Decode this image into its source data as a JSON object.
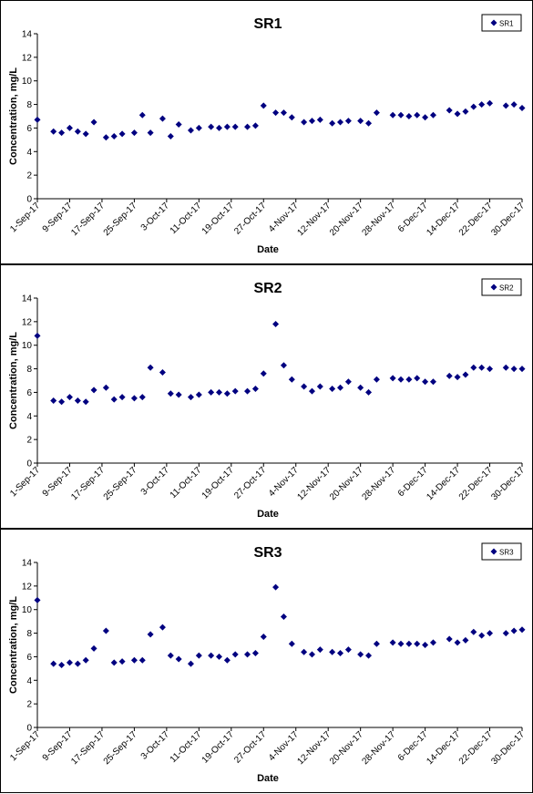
{
  "chart_data": [
    {
      "type": "scatter",
      "title": "SR1",
      "xlabel": "Date",
      "ylabel": "Concentration, mg/L",
      "ylim": [
        0,
        14
      ],
      "yticks": [
        "0",
        "2",
        "4",
        "6",
        "8",
        "10",
        "12",
        "14"
      ],
      "xlim": [
        "2017-09-01",
        "2017-12-30"
      ],
      "xticks": [
        "1-Sep-17",
        "9-Sep-17",
        "17-Sep-17",
        "25-Sep-17",
        "3-Oct-17",
        "11-Oct-17",
        "19-Oct-17",
        "27-Oct-17",
        "4-Nov-17",
        "12-Nov-17",
        "20-Nov-17",
        "28-Nov-17",
        "6-Dec-17",
        "14-Dec-17",
        "22-Dec-17",
        "30-Dec-17"
      ],
      "legend": "top-right",
      "marker_color": "#000080",
      "series": [
        {
          "name": "SR1",
          "x": [
            "2017-09-01",
            "2017-09-05",
            "2017-09-07",
            "2017-09-09",
            "2017-09-11",
            "2017-09-13",
            "2017-09-15",
            "2017-09-18",
            "2017-09-20",
            "2017-09-22",
            "2017-09-25",
            "2017-09-27",
            "2017-09-29",
            "2017-10-02",
            "2017-10-04",
            "2017-10-06",
            "2017-10-09",
            "2017-10-11",
            "2017-10-14",
            "2017-10-16",
            "2017-10-18",
            "2017-10-20",
            "2017-10-23",
            "2017-10-25",
            "2017-10-27",
            "2017-10-30",
            "2017-11-01",
            "2017-11-03",
            "2017-11-06",
            "2017-11-08",
            "2017-11-10",
            "2017-11-13",
            "2017-11-15",
            "2017-11-17",
            "2017-11-20",
            "2017-11-22",
            "2017-11-24",
            "2017-11-28",
            "2017-11-30",
            "2017-12-02",
            "2017-12-04",
            "2017-12-06",
            "2017-12-08",
            "2017-12-12",
            "2017-12-14",
            "2017-12-16",
            "2017-12-18",
            "2017-12-20",
            "2017-12-22",
            "2017-12-26",
            "2017-12-28",
            "2017-12-30"
          ],
          "y": [
            6.7,
            5.7,
            5.6,
            6.0,
            5.7,
            5.5,
            6.5,
            5.2,
            5.3,
            5.5,
            5.6,
            7.1,
            5.6,
            6.8,
            5.3,
            6.3,
            5.8,
            6.0,
            6.1,
            6.0,
            6.1,
            6.1,
            6.1,
            6.2,
            7.9,
            7.3,
            7.3,
            6.9,
            6.5,
            6.6,
            6.7,
            6.4,
            6.5,
            6.6,
            6.6,
            6.4,
            7.3,
            7.1,
            7.1,
            7.0,
            7.1,
            6.9,
            7.1,
            7.5,
            7.2,
            7.4,
            7.8,
            8.0,
            8.1,
            7.9,
            8.0,
            7.7
          ]
        }
      ]
    },
    {
      "type": "scatter",
      "title": "SR2",
      "xlabel": "Date",
      "ylabel": "Concentration, mg/L",
      "ylim": [
        0,
        14
      ],
      "yticks": [
        "0",
        "2",
        "4",
        "6",
        "8",
        "10",
        "12",
        "14"
      ],
      "xlim": [
        "2017-09-01",
        "2017-12-30"
      ],
      "xticks": [
        "1-Sep-17",
        "9-Sep-17",
        "17-Sep-17",
        "25-Sep-17",
        "3-Oct-17",
        "11-Oct-17",
        "19-Oct-17",
        "27-Oct-17",
        "4-Nov-17",
        "12-Nov-17",
        "20-Nov-17",
        "28-Nov-17",
        "6-Dec-17",
        "14-Dec-17",
        "22-Dec-17",
        "30-Dec-17"
      ],
      "legend": "top-right",
      "marker_color": "#000080",
      "series": [
        {
          "name": "SR2",
          "x": [
            "2017-09-01",
            "2017-09-05",
            "2017-09-07",
            "2017-09-09",
            "2017-09-11",
            "2017-09-13",
            "2017-09-15",
            "2017-09-18",
            "2017-09-20",
            "2017-09-22",
            "2017-09-25",
            "2017-09-27",
            "2017-09-29",
            "2017-10-02",
            "2017-10-04",
            "2017-10-06",
            "2017-10-09",
            "2017-10-11",
            "2017-10-14",
            "2017-10-16",
            "2017-10-18",
            "2017-10-20",
            "2017-10-23",
            "2017-10-25",
            "2017-10-27",
            "2017-10-30",
            "2017-11-01",
            "2017-11-03",
            "2017-11-06",
            "2017-11-08",
            "2017-11-10",
            "2017-11-13",
            "2017-11-15",
            "2017-11-17",
            "2017-11-20",
            "2017-11-22",
            "2017-11-24",
            "2017-11-28",
            "2017-11-30",
            "2017-12-02",
            "2017-12-04",
            "2017-12-06",
            "2017-12-08",
            "2017-12-12",
            "2017-12-14",
            "2017-12-16",
            "2017-12-18",
            "2017-12-20",
            "2017-12-22",
            "2017-12-26",
            "2017-12-28",
            "2017-12-30"
          ],
          "y": [
            10.8,
            5.3,
            5.2,
            5.6,
            5.3,
            5.2,
            6.2,
            6.4,
            5.4,
            5.6,
            5.5,
            5.6,
            8.1,
            7.7,
            5.9,
            5.8,
            5.6,
            5.8,
            6.0,
            6.0,
            5.9,
            6.1,
            6.1,
            6.3,
            7.6,
            11.8,
            8.3,
            7.1,
            6.5,
            6.1,
            6.5,
            6.3,
            6.4,
            6.9,
            6.4,
            6.0,
            7.1,
            7.2,
            7.1,
            7.1,
            7.2,
            6.9,
            6.9,
            7.4,
            7.3,
            7.5,
            8.1,
            8.1,
            8.0,
            8.1,
            8.0,
            8.0
          ]
        }
      ]
    },
    {
      "type": "scatter",
      "title": "SR3",
      "xlabel": "Date",
      "ylabel": "Concentration, mg/L",
      "ylim": [
        0,
        14
      ],
      "yticks": [
        "0",
        "2",
        "4",
        "6",
        "8",
        "10",
        "12",
        "14"
      ],
      "xlim": [
        "2017-09-01",
        "2017-12-30"
      ],
      "xticks": [
        "1-Sep-17",
        "9-Sep-17",
        "17-Sep-17",
        "25-Sep-17",
        "3-Oct-17",
        "11-Oct-17",
        "19-Oct-17",
        "27-Oct-17",
        "4-Nov-17",
        "12-Nov-17",
        "20-Nov-17",
        "28-Nov-17",
        "6-Dec-17",
        "14-Dec-17",
        "22-Dec-17",
        "30-Dec-17"
      ],
      "legend": "top-right",
      "marker_color": "#000080",
      "series": [
        {
          "name": "SR3",
          "x": [
            "2017-09-01",
            "2017-09-05",
            "2017-09-07",
            "2017-09-09",
            "2017-09-11",
            "2017-09-13",
            "2017-09-15",
            "2017-09-18",
            "2017-09-20",
            "2017-09-22",
            "2017-09-25",
            "2017-09-27",
            "2017-09-29",
            "2017-10-02",
            "2017-10-04",
            "2017-10-06",
            "2017-10-09",
            "2017-10-11",
            "2017-10-14",
            "2017-10-16",
            "2017-10-18",
            "2017-10-20",
            "2017-10-23",
            "2017-10-25",
            "2017-10-27",
            "2017-10-30",
            "2017-11-01",
            "2017-11-03",
            "2017-11-06",
            "2017-11-08",
            "2017-11-10",
            "2017-11-13",
            "2017-11-15",
            "2017-11-17",
            "2017-11-20",
            "2017-11-22",
            "2017-11-24",
            "2017-11-28",
            "2017-11-30",
            "2017-12-02",
            "2017-12-04",
            "2017-12-06",
            "2017-12-08",
            "2017-12-12",
            "2017-12-14",
            "2017-12-16",
            "2017-12-18",
            "2017-12-20",
            "2017-12-22",
            "2017-12-26",
            "2017-12-28",
            "2017-12-30"
          ],
          "y": [
            10.8,
            5.4,
            5.3,
            5.5,
            5.4,
            5.7,
            6.7,
            8.2,
            5.5,
            5.6,
            5.7,
            5.7,
            7.9,
            8.5,
            6.1,
            5.8,
            5.4,
            6.1,
            6.1,
            6.0,
            5.7,
            6.2,
            6.2,
            6.3,
            7.7,
            11.9,
            9.4,
            7.1,
            6.4,
            6.2,
            6.6,
            6.4,
            6.3,
            6.6,
            6.2,
            6.1,
            7.1,
            7.2,
            7.1,
            7.1,
            7.1,
            7.0,
            7.2,
            7.5,
            7.2,
            7.4,
            8.1,
            7.8,
            8.0,
            8.0,
            8.2,
            8.3
          ]
        }
      ]
    }
  ]
}
